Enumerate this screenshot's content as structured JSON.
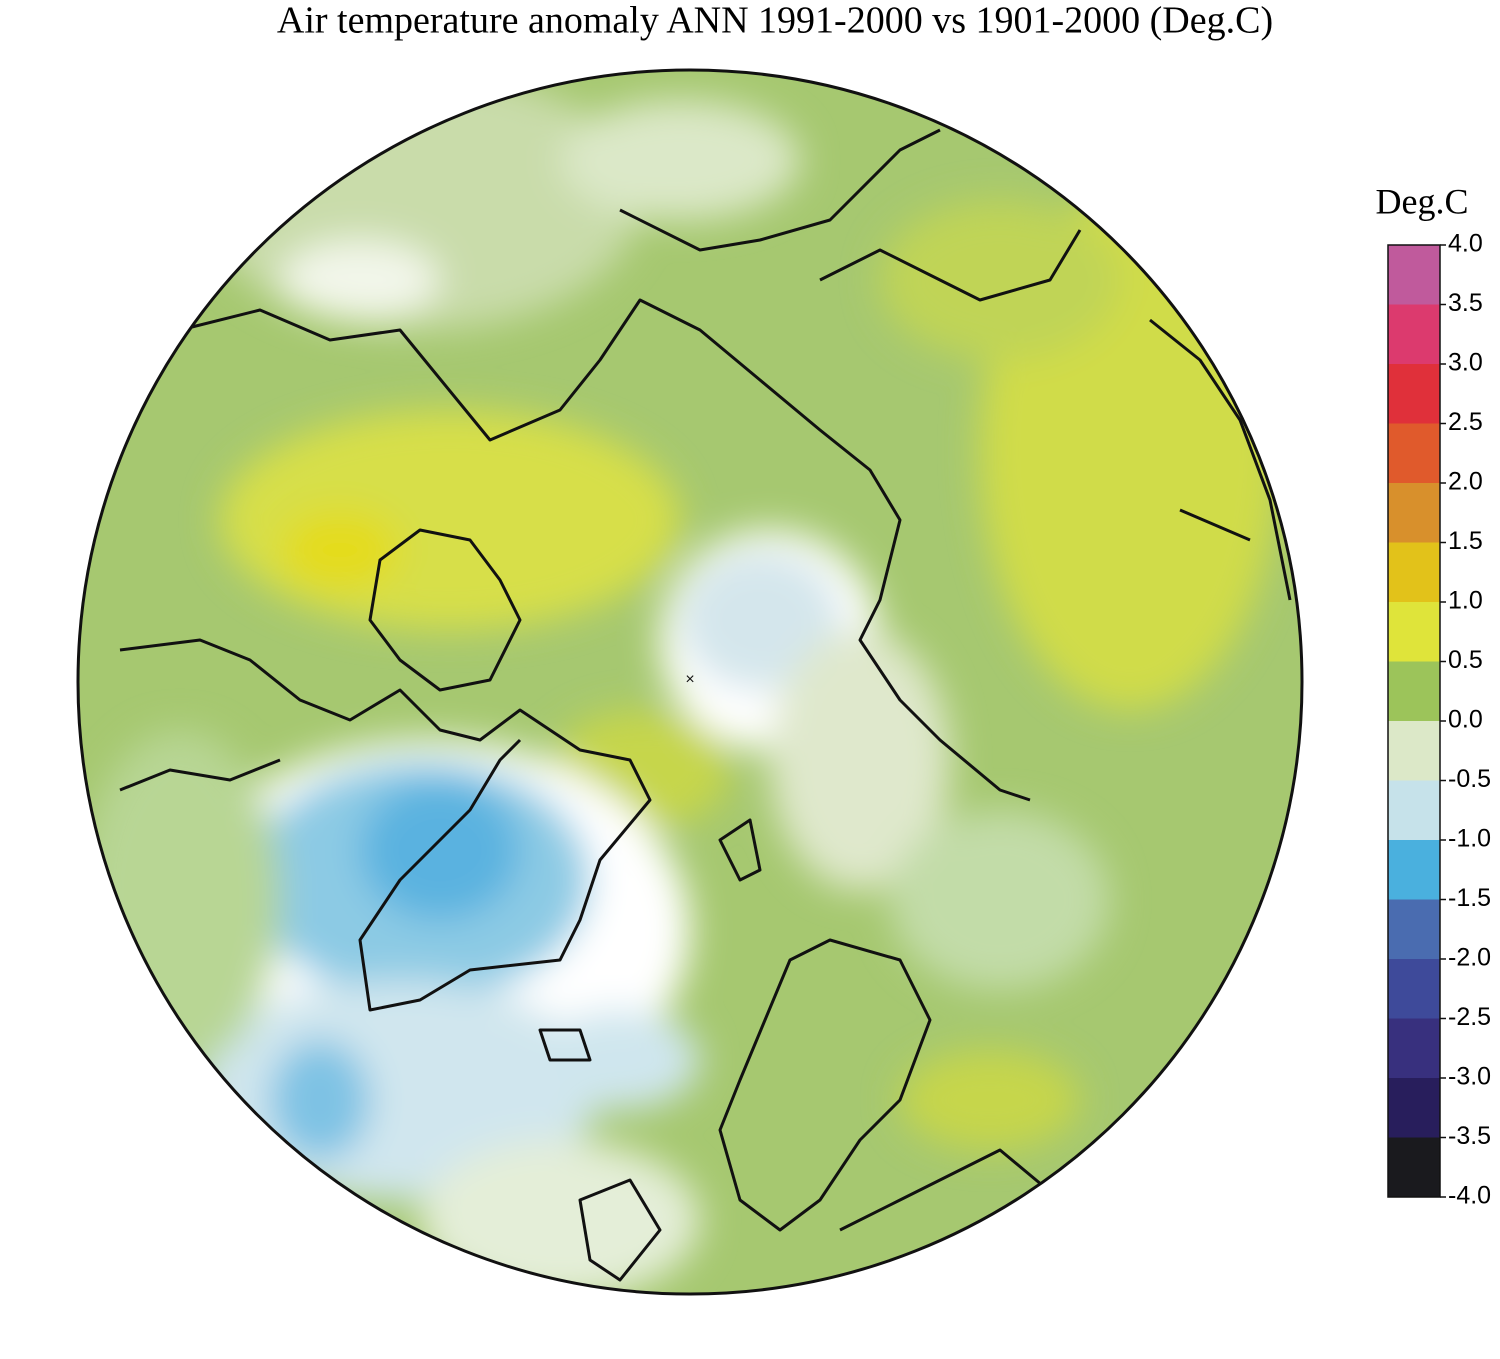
{
  "title": "Air temperature anomaly ANN 1991-2000 vs 1901-2000 (Deg.C)",
  "colorbar": {
    "label": "Deg.C",
    "range": [
      -4,
      4
    ],
    "ticks": [
      {
        "value": 4,
        "label": "4.0"
      },
      {
        "value": 3.5,
        "label": "3.5"
      },
      {
        "value": 3,
        "label": "3.0"
      },
      {
        "value": 2.5,
        "label": "2.5"
      },
      {
        "value": 2,
        "label": "2.0"
      },
      {
        "value": 1.5,
        "label": "1.5"
      },
      {
        "value": 1,
        "label": "1.0"
      },
      {
        "value": 0.5,
        "label": "0.5"
      },
      {
        "value": 0,
        "label": "0.0"
      },
      {
        "value": -0.5,
        "label": "-0.5"
      },
      {
        "value": -1,
        "label": "-1.0"
      },
      {
        "value": -1.5,
        "label": "-1.5"
      },
      {
        "value": -2,
        "label": "-2.0"
      },
      {
        "value": -2.5,
        "label": "-2.5"
      },
      {
        "value": -3,
        "label": "-3.0"
      },
      {
        "value": -3.5,
        "label": "-3.5"
      },
      {
        "value": -4,
        "label": "-4.0"
      }
    ],
    "colors": [
      "#c05a9c",
      "#dc3a6e",
      "#e0303a",
      "#e05a2c",
      "#d8902c",
      "#e2c21a",
      "#dfe43a",
      "#9cc45a",
      "#dce8c8",
      "#c6e2ea",
      "#4ab0de",
      "#4a6cb0",
      "#3e4a9a",
      "#38307e",
      "#281e5c",
      "#1a1a1e"
    ]
  }
}
